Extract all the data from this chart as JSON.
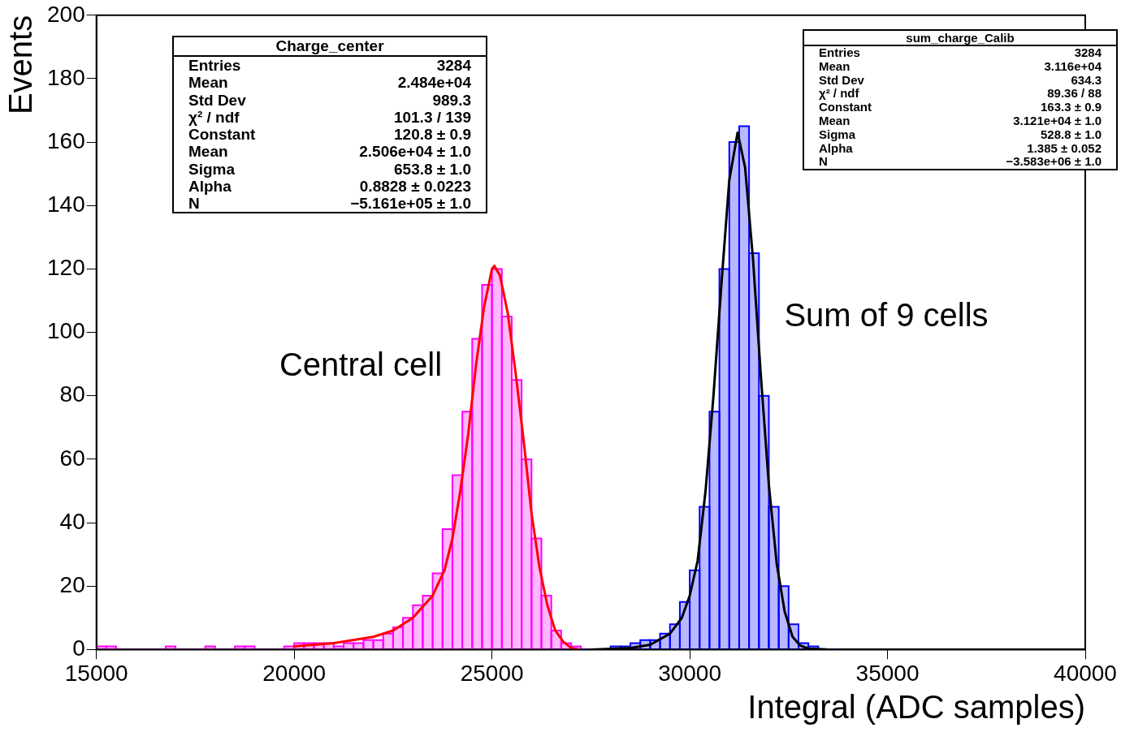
{
  "chart_data": {
    "type": "histogram",
    "xlabel": "Integral (ADC samples)",
    "ylabel": "Events",
    "xlim": [
      15000,
      40000
    ],
    "xticks": [
      15000,
      20000,
      25000,
      30000,
      35000,
      40000
    ],
    "ylim": [
      0,
      200
    ],
    "yticks": [
      0,
      20,
      40,
      60,
      80,
      100,
      120,
      140,
      160,
      180,
      200
    ],
    "grid": false,
    "legend": false,
    "series": [
      {
        "color": "#ff00ff",
        "bins": [
          15000,
          15250,
          15500,
          15750,
          16000,
          16250,
          16500,
          16750,
          17000,
          17250,
          17500,
          17750,
          18000,
          18250,
          18500,
          18750,
          19000,
          19250,
          19500,
          19750,
          20000,
          20250,
          20500,
          20750,
          21000,
          21250,
          21500,
          21750,
          22000,
          22250,
          22500,
          22750,
          23000,
          23250,
          23500,
          23750,
          24000,
          24250,
          24500,
          24750,
          25000,
          25250,
          25500,
          25750,
          26000,
          26250,
          26500,
          26750,
          27000,
          27250,
          27500,
          27750,
          28000
        ],
        "values": [
          1,
          1,
          0,
          0,
          0,
          0,
          0,
          1,
          0,
          0,
          0,
          1,
          0,
          0,
          1,
          1,
          0,
          0,
          0,
          1,
          2,
          2,
          2,
          2,
          1,
          2,
          2,
          3,
          3,
          5,
          7,
          10,
          14,
          17,
          24,
          38,
          55,
          75,
          98,
          115,
          120,
          105,
          85,
          60,
          35,
          17,
          6,
          2,
          1,
          0,
          0,
          0
        ]
      },
      {
        "color": "#0000ff",
        "bins": [
          27000,
          27250,
          27500,
          27750,
          28000,
          28250,
          28500,
          28750,
          29000,
          29250,
          29500,
          29750,
          30000,
          30250,
          30500,
          30750,
          31000,
          31250,
          31500,
          31750,
          32000,
          32250,
          32500,
          32750,
          33000,
          33250,
          33500,
          33750
        ],
        "values": [
          0,
          0,
          0,
          0,
          1,
          1,
          2,
          3,
          3,
          5,
          8,
          15,
          25,
          45,
          75,
          120,
          160,
          165,
          125,
          80,
          45,
          20,
          8,
          2,
          1,
          0,
          0
        ]
      },
      {
        "type": "line",
        "color": "#ff0000",
        "x": [
          20000,
          21000,
          22000,
          22500,
          23000,
          23500,
          23800,
          24000,
          24200,
          24400,
          24600,
          24800,
          25000,
          25060,
          25200,
          25400,
          25600,
          25800,
          26000,
          26200,
          26400,
          26600,
          26800,
          27000,
          27200
        ],
        "values": [
          1,
          2,
          4,
          6,
          10,
          17,
          25,
          35,
          50,
          68,
          90,
          108,
          120,
          121,
          118,
          106,
          87,
          66,
          43,
          26,
          14,
          6,
          2.5,
          0.5,
          0
        ]
      },
      {
        "type": "line",
        "color": "#000000",
        "x": [
          27500,
          28500,
          29000,
          29500,
          29800,
          30000,
          30200,
          30400,
          30600,
          30800,
          31000,
          31210,
          31400,
          31600,
          31800,
          32000,
          32200,
          32400,
          32600,
          32800,
          33000,
          33500
        ],
        "values": [
          0,
          0.5,
          1.5,
          5,
          10,
          17,
          28,
          50,
          80,
          115,
          148,
          163,
          152,
          123,
          86,
          52,
          27,
          12,
          4,
          1.2,
          0.3,
          0
        ]
      }
    ],
    "annotations": [
      "Charge_center\nEntries\t3284\nMean\t2.484e+04\nStd Dev\t989.3\nχ² / ndf\t101.3 / 139\nConstant\t120.8 ± 0.9\nMean\t2.506e+04 ± 1.0\nSigma\t653.8 ± 1.0\nAlpha\t0.8828 ± 0.0223\nN\t−5.161e+05 ± 1.0",
      "sum_charge_Calib\nEntries\t3284\nMean\t3.116e+04\nStd Dev\t634.3\nχ² / ndf\t89.36 / 88\nConstant\t163.3 ± 0.9\nMean\t3.121e+04 ± 1.0\nSigma\t528.8 ± 1.0\nAlpha\t1.385 ± 0.052\nN\t−3.583e+06 ± 1.0",
      "Central cell",
      "Sum of 9 cells"
    ]
  }
}
